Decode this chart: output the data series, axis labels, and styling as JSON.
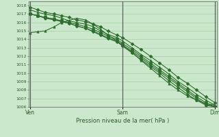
{
  "title": "Pression niveau de la mer( hPa )",
  "background_color": "#cce8cc",
  "grid_color": "#99cc99",
  "line_color": "#2d6e2d",
  "marker_color": "#2d6e2d",
  "ylim": [
    1006,
    1018.5
  ],
  "yticks": [
    1006,
    1007,
    1008,
    1009,
    1010,
    1011,
    1012,
    1013,
    1014,
    1015,
    1016,
    1017,
    1018
  ],
  "xtick_labels": [
    "Ven",
    "Sam",
    "Dim"
  ],
  "xtick_positions": [
    0.0,
    0.5,
    1.0
  ],
  "lines": [
    {
      "x": [
        0.0,
        0.04,
        0.08,
        0.13,
        0.17,
        0.21,
        0.25,
        0.3,
        0.34,
        0.38,
        0.42,
        0.47,
        0.5,
        0.55,
        0.6,
        0.65,
        0.7,
        0.75,
        0.8,
        0.85,
        0.9,
        0.95,
        1.0
      ],
      "y": [
        1017.8,
        1017.5,
        1017.2,
        1017.0,
        1016.8,
        1016.6,
        1016.3,
        1016.1,
        1015.8,
        1015.5,
        1015.0,
        1014.5,
        1014.2,
        1013.5,
        1012.8,
        1012.0,
        1011.2,
        1010.4,
        1009.5,
        1008.8,
        1008.0,
        1007.2,
        1006.5
      ],
      "marker": "D",
      "ms": 2.5,
      "lw": 0.8
    },
    {
      "x": [
        0.0,
        0.04,
        0.08,
        0.13,
        0.17,
        0.21,
        0.25,
        0.3,
        0.34,
        0.38,
        0.42,
        0.47,
        0.5,
        0.55,
        0.6,
        0.65,
        0.7,
        0.75,
        0.8,
        0.85,
        0.9,
        0.95,
        1.0
      ],
      "y": [
        1017.5,
        1017.2,
        1017.0,
        1016.8,
        1016.5,
        1016.2,
        1016.0,
        1015.8,
        1015.5,
        1015.0,
        1014.6,
        1014.2,
        1013.8,
        1013.0,
        1012.2,
        1011.5,
        1010.7,
        1009.9,
        1009.0,
        1008.3,
        1007.5,
        1006.8,
        1006.2
      ],
      "marker": "^",
      "ms": 2.5,
      "lw": 0.8
    },
    {
      "x": [
        0.0,
        0.04,
        0.08,
        0.13,
        0.17,
        0.21,
        0.25,
        0.3,
        0.34,
        0.38,
        0.42,
        0.47,
        0.5,
        0.55,
        0.6,
        0.65,
        0.7,
        0.75,
        0.8,
        0.85,
        0.9,
        0.95,
        1.0
      ],
      "y": [
        1017.0,
        1016.8,
        1016.6,
        1016.4,
        1016.2,
        1016.0,
        1015.8,
        1015.5,
        1015.2,
        1014.8,
        1014.4,
        1014.0,
        1013.5,
        1012.8,
        1012.0,
        1011.2,
        1010.4,
        1009.6,
        1008.8,
        1008.0,
        1007.2,
        1006.5,
        1006.0
      ],
      "marker": "s",
      "ms": 2.5,
      "lw": 0.8
    },
    {
      "x": [
        0.0,
        0.04,
        0.08,
        0.13,
        0.17,
        0.21,
        0.25,
        0.3,
        0.34,
        0.38,
        0.42,
        0.47,
        0.5,
        0.55,
        0.6,
        0.65,
        0.7,
        0.75,
        0.8,
        0.85,
        0.9,
        0.95,
        1.0
      ],
      "y": [
        1017.0,
        1016.8,
        1016.5,
        1016.3,
        1016.1,
        1015.9,
        1015.6,
        1015.3,
        1015.0,
        1014.6,
        1014.2,
        1013.8,
        1013.3,
        1012.6,
        1011.8,
        1011.0,
        1010.2,
        1009.4,
        1008.6,
        1007.8,
        1007.0,
        1006.3,
        1006.0
      ],
      "marker": "o",
      "ms": 2.5,
      "lw": 0.8
    },
    {
      "x": [
        0.0,
        0.04,
        0.08,
        0.13,
        0.17,
        0.25,
        0.3,
        0.34,
        0.38,
        0.42,
        0.47,
        0.5,
        0.55,
        0.6,
        0.65,
        0.7,
        0.75,
        0.8,
        0.85,
        0.9,
        0.95,
        1.0
      ],
      "y": [
        1014.8,
        1014.9,
        1015.0,
        1015.5,
        1016.0,
        1016.5,
        1016.3,
        1015.8,
        1015.2,
        1014.5,
        1013.8,
        1013.3,
        1012.5,
        1011.5,
        1010.6,
        1009.7,
        1008.8,
        1008.0,
        1007.3,
        1006.8,
        1006.4,
        1006.2
      ],
      "marker": "^",
      "ms": 2.5,
      "lw": 0.8
    },
    {
      "x": [
        0.0,
        0.04,
        0.08,
        0.13,
        0.17,
        0.21,
        0.25,
        0.3,
        0.34,
        0.38,
        0.42,
        0.47,
        0.5,
        0.55,
        0.6,
        0.65,
        0.7,
        0.75,
        0.8,
        0.85,
        0.9,
        0.95,
        1.0
      ],
      "y": [
        1017.0,
        1016.8,
        1016.6,
        1016.4,
        1016.1,
        1015.9,
        1015.6,
        1015.3,
        1014.9,
        1014.5,
        1014.1,
        1013.7,
        1013.2,
        1012.4,
        1011.6,
        1010.8,
        1010.0,
        1009.1,
        1008.3,
        1007.5,
        1006.8,
        1006.2,
        1006.0
      ],
      "marker": "D",
      "ms": 2.5,
      "lw": 0.8
    }
  ]
}
